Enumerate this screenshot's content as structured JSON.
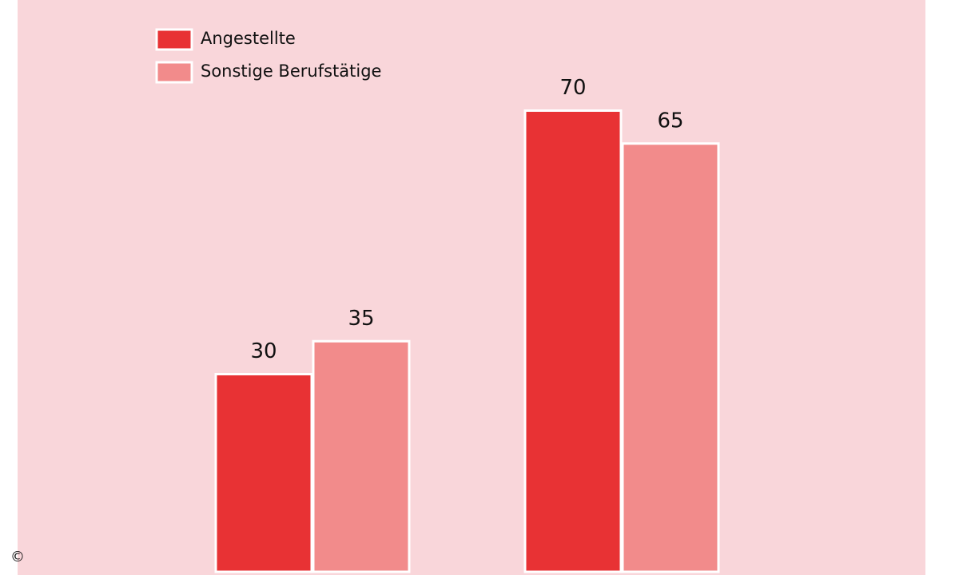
{
  "chart_data": {
    "type": "bar",
    "categories": [
      null,
      null
    ],
    "series": [
      {
        "name": "Angestellte",
        "color": "#e83234",
        "values": [
          30,
          70
        ]
      },
      {
        "name": "Sonstige Berufstätige",
        "color": "#f28b8b",
        "values": [
          35,
          65
        ]
      }
    ],
    "legend": "top-left",
    "copyright": "©"
  }
}
